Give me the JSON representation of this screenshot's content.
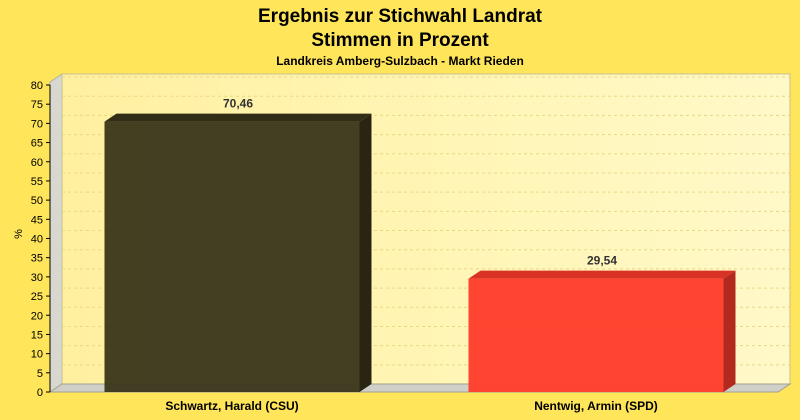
{
  "chart_data": {
    "type": "bar",
    "title": "Ergebnis zur Stichwahl Landrat",
    "subtitle_line": "Stimmen in Prozent",
    "subtitle": "Landkreis Amberg-Sulzbach - Markt Rieden",
    "ylabel": "%",
    "xlabel": "",
    "ylim": [
      0,
      80
    ],
    "ytick_step": 5,
    "grid": true,
    "legend": "none",
    "categories": [
      "Schwartz, Harald (CSU)",
      "Nentwig, Armin (SPD)"
    ],
    "values": [
      70.46,
      29.54
    ],
    "value_labels": [
      "70,46",
      "29,54"
    ],
    "colors": [
      "#3a351a",
      "#ff3b2a"
    ]
  }
}
